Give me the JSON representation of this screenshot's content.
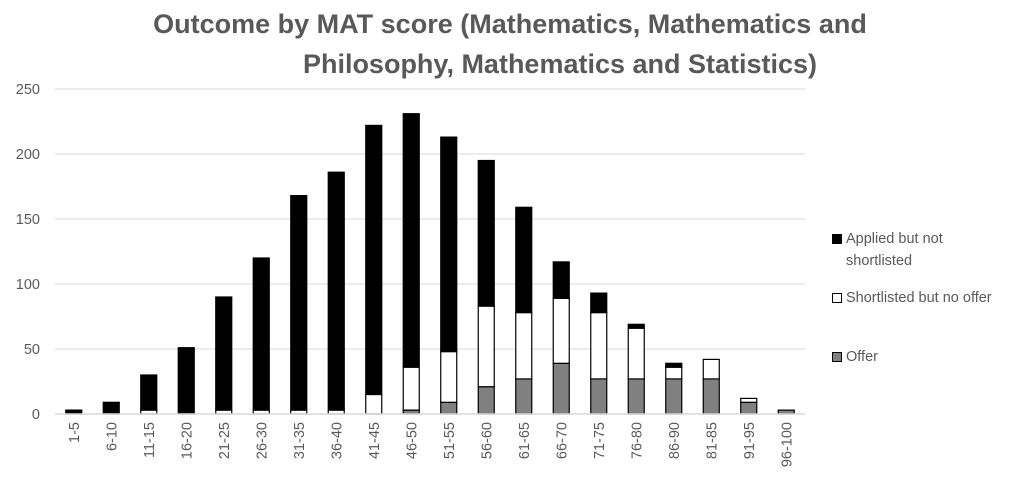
{
  "chart_data": {
    "type": "bar",
    "stacked": true,
    "title": "Outcome by MAT score (Mathematics, Mathematics and Philosophy, Mathematics and Statistics)",
    "title_lines": [
      "Outcome by MAT score (Mathematics, Mathematics and",
      "Philosophy, Mathematics and Statistics)"
    ],
    "xlabel": "",
    "ylabel": "",
    "ylim": [
      0,
      250
    ],
    "yticks": [
      0,
      50,
      100,
      150,
      200,
      250
    ],
    "grid": true,
    "legend_position": "right",
    "categories": [
      "1-5",
      "6-10",
      "11-15",
      "16-20",
      "21-25",
      "26-30",
      "31-35",
      "36-40",
      "41-45",
      "46-50",
      "51-55",
      "56-60",
      "61-65",
      "66-70",
      "71-75",
      "76-80",
      "86-90",
      "81-85",
      "91-95",
      "96-100"
    ],
    "series": [
      {
        "name": "Offer",
        "color": "#808080",
        "values": [
          0,
          0,
          0,
          0,
          0,
          0,
          0,
          0,
          0,
          3,
          9,
          21,
          27,
          39,
          27,
          27,
          27,
          27,
          9,
          3
        ]
      },
      {
        "name": "Shortlisted but no offer",
        "color": "#ffffff",
        "values": [
          0,
          0,
          3,
          0,
          3,
          3,
          3,
          3,
          15,
          33,
          39,
          62,
          51,
          50,
          51,
          39,
          9,
          15,
          3,
          0
        ]
      },
      {
        "name": "Applied but not shortlisted",
        "color": "#000000",
        "values": [
          3,
          9,
          27,
          51,
          87,
          117,
          165,
          183,
          207,
          195,
          165,
          112,
          81,
          28,
          15,
          3,
          3,
          0,
          0,
          0
        ]
      }
    ],
    "totals": [
      3,
      9,
      30,
      51,
      90,
      120,
      168,
      186,
      222,
      231,
      213,
      195,
      159,
      117,
      93,
      69,
      39,
      42,
      12,
      3
    ]
  },
  "legend": {
    "items": [
      {
        "label_line1": "Applied but not",
        "label_line2": "shortlisted",
        "color": "#000000"
      },
      {
        "label_line1": "Shortlisted but no offer",
        "label_line2": "",
        "color": "#ffffff"
      },
      {
        "label_line1": "Offer",
        "label_line2": "",
        "color": "#808080"
      }
    ]
  }
}
